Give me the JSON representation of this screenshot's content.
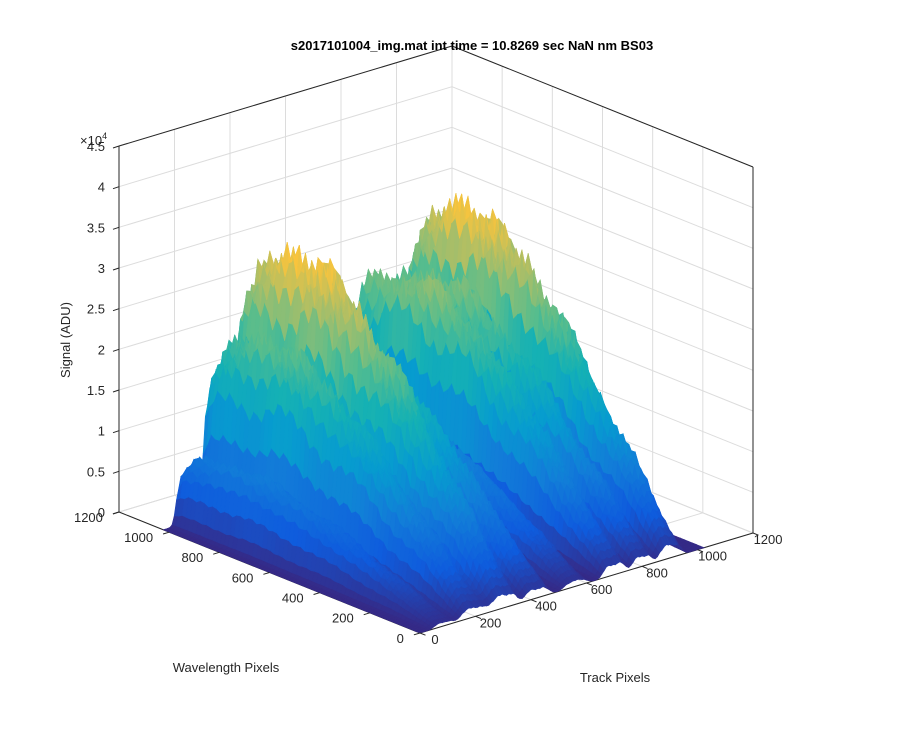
{
  "chart_data": {
    "type": "surface",
    "title": "s2017101004_img.mat int time = 10.8269 sec  NaN nm BS03",
    "xlabel": "Track Pixels",
    "ylabel": "Wavelength Pixels",
    "zlabel": "Signal (ADU)",
    "z_exponent_label": "×10",
    "z_exponent_power": "4",
    "xlim": [
      0,
      1200
    ],
    "ylim": [
      0,
      1200
    ],
    "zlim": [
      0,
      4.5
    ],
    "z_scale": 10000,
    "x_ticks": [
      {
        "value": 0,
        "label": "0"
      },
      {
        "value": 200,
        "label": "200"
      },
      {
        "value": 400,
        "label": "400"
      },
      {
        "value": 600,
        "label": "600"
      },
      {
        "value": 800,
        "label": "800"
      },
      {
        "value": 1000,
        "label": "1000"
      },
      {
        "value": 1200,
        "label": "1200"
      }
    ],
    "y_ticks": [
      {
        "value": 0,
        "label": "0"
      },
      {
        "value": 200,
        "label": "200"
      },
      {
        "value": 400,
        "label": "400"
      },
      {
        "value": 600,
        "label": "600"
      },
      {
        "value": 800,
        "label": "800"
      },
      {
        "value": 1000,
        "label": "1000"
      },
      {
        "value": 1200,
        "label": "1200"
      }
    ],
    "z_ticks": [
      {
        "value": 0,
        "label": "0"
      },
      {
        "value": 0.5,
        "label": "0.5"
      },
      {
        "value": 1,
        "label": "1"
      },
      {
        "value": 1.5,
        "label": "1.5"
      },
      {
        "value": 2,
        "label": "2"
      },
      {
        "value": 2.5,
        "label": "2.5"
      },
      {
        "value": 3,
        "label": "3"
      },
      {
        "value": 3.5,
        "label": "3.5"
      },
      {
        "value": 4,
        "label": "4"
      },
      {
        "value": 4.5,
        "label": "4.5"
      }
    ],
    "grid": true,
    "colormap": "parula",
    "data_extent": {
      "x": [
        0,
        1024
      ],
      "y": [
        0,
        1024
      ]
    },
    "tracks": [
      {
        "center": 85,
        "width": 40,
        "peak": 0.9
      },
      {
        "center": 190,
        "width": 50,
        "peak": 2.3
      },
      {
        "center": 300,
        "width": 55,
        "peak": 3.2
      },
      {
        "center": 420,
        "width": 50,
        "peak": 2.3
      },
      {
        "center": 560,
        "width": 45,
        "peak": 1.4
      },
      {
        "center": 700,
        "width": 45,
        "peak": 2.6
      },
      {
        "center": 800,
        "width": 40,
        "peak": 2.5
      },
      {
        "center": 900,
        "width": 45,
        "peak": 3.2
      }
    ],
    "wavelength_profile": [
      {
        "y": 0,
        "factor": 0.05
      },
      {
        "y": 150,
        "factor": 0.3
      },
      {
        "y": 350,
        "factor": 0.6
      },
      {
        "y": 550,
        "factor": 0.85
      },
      {
        "y": 750,
        "factor": 1.0
      },
      {
        "y": 900,
        "factor": 0.95
      },
      {
        "y": 1000,
        "factor": 0.85
      },
      {
        "y": 1024,
        "factor": 0.7
      }
    ]
  }
}
